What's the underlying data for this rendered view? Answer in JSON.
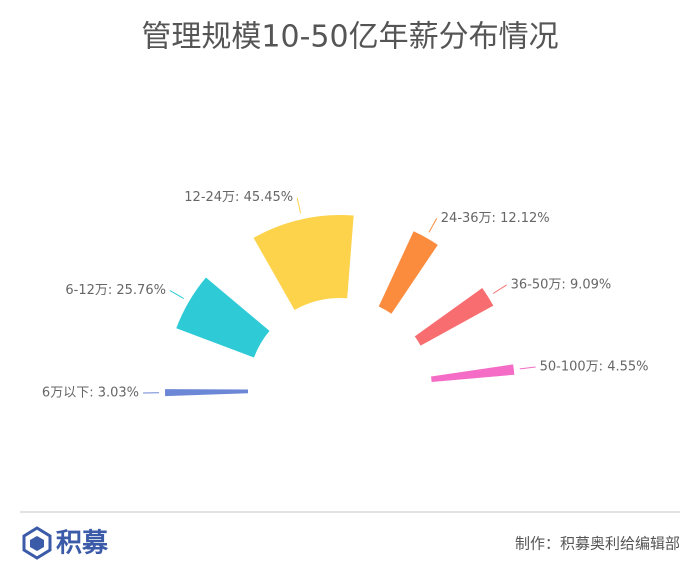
{
  "chart_data": {
    "type": "rose",
    "title": "管理规模10-50亿年薪分布情况",
    "values": [
      3.03,
      25.76,
      45.45,
      12.12,
      9.09,
      4.55
    ],
    "value_labels": [
      "6万以下: 3.03%",
      "6-12万: 25.76%",
      "12-24万: 45.45%",
      "24-36万: 12.12%",
      "36-50万: 9.09%",
      "50-100万: 4.55%"
    ],
    "colors": [
      "#6b87d6",
      "#2ecbd6",
      "#fdd34c",
      "#fb8c3e",
      "#f86e70",
      "#f46cc6"
    ]
  },
  "footer": {
    "logo": "积募",
    "credit": "制作：积募奥利给编辑部"
  }
}
